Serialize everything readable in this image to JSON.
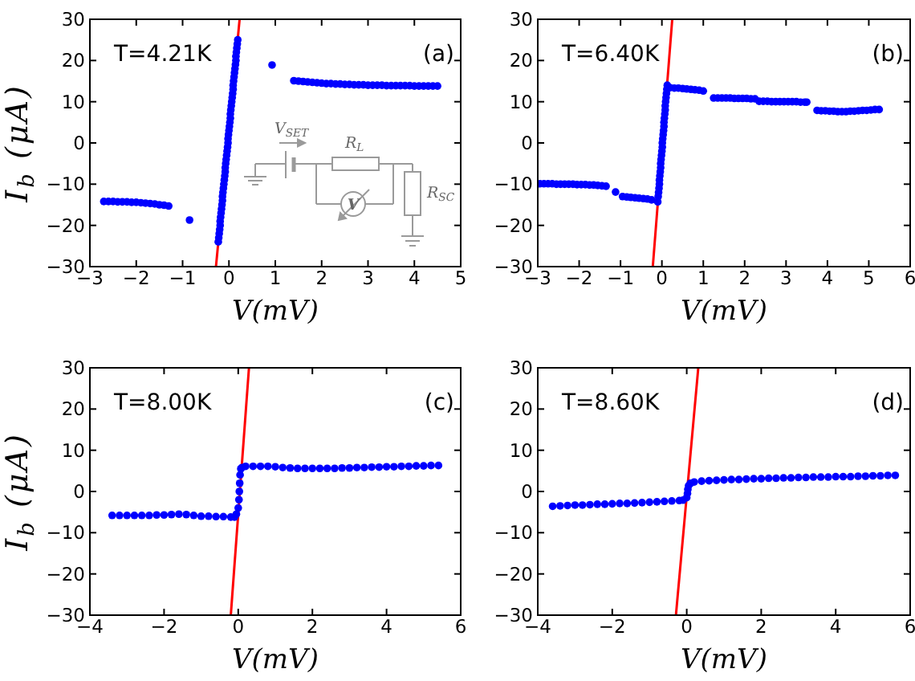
{
  "chart_data": [
    {
      "type": "scatter",
      "title": "(a)",
      "annotations": [
        "T=4.21K",
        "V$_{SET}$",
        "R$_{L}$",
        "R$_{SC}$",
        "V"
      ],
      "xlabel": "V(mV)",
      "ylabel": "I$_{b}$ (μA)",
      "xlim": [
        -3,
        5
      ],
      "xticks": [
        -3,
        -2,
        -1,
        0,
        1,
        2,
        3,
        4,
        5
      ],
      "ylim": [
        -30,
        30
      ],
      "yticks": [
        -30,
        -20,
        -10,
        0,
        10,
        20,
        30
      ],
      "series": [
        {
          "marker": "circle",
          "color": "#0000ff",
          "x": [
            -2.7,
            -2.6,
            -2.5,
            -2.4,
            -2.3,
            -2.2,
            -2.1,
            -2.0,
            -1.9,
            -1.8,
            -1.7,
            -1.6,
            -1.5,
            -1.4,
            -1.3,
            -0.85,
            -0.23,
            -0.22,
            -0.21,
            -0.2,
            -0.19,
            -0.19,
            -0.18,
            -0.17,
            -0.16,
            -0.15,
            -0.14,
            -0.14,
            -0.13,
            -0.12,
            -0.11,
            -0.1,
            -0.09,
            -0.08,
            -0.08,
            -0.07,
            -0.06,
            -0.05,
            -0.04,
            -0.03,
            -0.02,
            -0.02,
            -0.01,
            0.0,
            0.01,
            0.02,
            0.03,
            0.03,
            0.04,
            0.05,
            0.06,
            0.07,
            0.08,
            0.09,
            0.09,
            0.1,
            0.11,
            0.12,
            0.13,
            0.14,
            0.15,
            0.15,
            0.16,
            0.17,
            0.18,
            0.19,
            0.93,
            1.4,
            1.5,
            1.6,
            1.7,
            1.8,
            1.9,
            2.0,
            2.1,
            2.2,
            2.3,
            2.4,
            2.5,
            2.6,
            2.7,
            2.8,
            2.9,
            3.0,
            3.1,
            3.2,
            3.3,
            3.4,
            3.5,
            3.6,
            3.7,
            3.8,
            3.9,
            4.0,
            4.1,
            4.2,
            4.3,
            4.4,
            4.5
          ],
          "values": [
            -14.2,
            -14.2,
            -14.2,
            -14.3,
            -14.3,
            -14.3,
            -14.4,
            -14.4,
            -14.5,
            -14.6,
            -14.7,
            -14.8,
            -15.0,
            -15.1,
            -15.3,
            -18.7,
            -24,
            -23,
            -22,
            -21,
            -20,
            -19,
            -18,
            -17,
            -16,
            -15,
            -14,
            -13,
            -12,
            -11,
            -10,
            -9,
            -8,
            -7,
            -6,
            -5,
            -4,
            -3,
            -2,
            -1,
            0,
            1,
            2,
            3,
            4,
            5,
            6,
            7,
            8,
            9,
            10,
            11,
            12,
            13,
            14,
            15,
            16,
            17,
            18,
            19,
            20,
            21,
            22,
            23,
            24,
            25,
            18.9,
            15.1,
            15.0,
            14.9,
            14.8,
            14.7,
            14.6,
            14.5,
            14.4,
            14.4,
            14.3,
            14.3,
            14.2,
            14.2,
            14.1,
            14.1,
            14.1,
            14.0,
            14.0,
            14.0,
            14.0,
            13.9,
            13.9,
            13.9,
            13.9,
            13.9,
            13.9,
            13.8,
            13.8,
            13.8,
            13.8,
            13.8,
            13.8
          ]
        },
        {
          "type": "line",
          "color": "#ff0000",
          "x": [
            -0.28,
            0.23
          ],
          "values": [
            -30,
            30
          ]
        }
      ]
    },
    {
      "type": "scatter",
      "title": "(b)",
      "annotations": [
        "T=6.40K"
      ],
      "xlabel": "V(mV)",
      "xlim": [
        -3,
        6
      ],
      "xticks": [
        -3,
        -2,
        -1,
        0,
        1,
        2,
        3,
        4,
        5,
        6
      ],
      "ylim": [
        -30,
        30
      ],
      "yticks": [
        -30,
        -20,
        -10,
        0,
        10,
        20,
        30
      ],
      "series": [
        {
          "marker": "circle",
          "color": "#0000ff",
          "x": [
            -2.95,
            -2.85,
            -2.75,
            -2.65,
            -2.55,
            -2.45,
            -2.35,
            -2.25,
            -2.15,
            -2.05,
            -1.95,
            -1.85,
            -1.75,
            -1.65,
            -1.55,
            -1.45,
            -1.35,
            -1.12,
            -0.95,
            -0.85,
            -0.75,
            -0.65,
            -0.55,
            -0.45,
            -0.35,
            -0.25,
            -0.1,
            -0.09,
            -0.08,
            -0.07,
            -0.06,
            -0.06,
            -0.05,
            -0.04,
            -0.03,
            -0.03,
            -0.02,
            -0.01,
            0.0,
            0.01,
            0.01,
            0.02,
            0.03,
            0.04,
            0.05,
            0.05,
            0.06,
            0.07,
            0.08,
            0.08,
            0.09,
            0.1,
            0.11,
            0.12,
            0.13,
            0.2,
            0.3,
            0.4,
            0.5,
            0.6,
            0.7,
            0.8,
            0.9,
            1.0,
            1.25,
            1.35,
            1.45,
            1.55,
            1.65,
            1.75,
            1.85,
            1.95,
            2.05,
            2.15,
            2.25,
            2.35,
            2.45,
            2.55,
            2.65,
            2.75,
            2.85,
            2.95,
            3.05,
            3.15,
            3.25,
            3.35,
            3.45,
            3.5,
            3.75,
            3.85,
            3.95,
            4.05,
            4.15,
            4.25,
            4.35,
            4.45,
            4.55,
            4.65,
            4.75,
            4.85,
            4.95,
            5.05,
            5.15,
            5.25
          ],
          "values": [
            -9.9,
            -9.9,
            -9.9,
            -9.9,
            -10.0,
            -10.0,
            -10.0,
            -10.0,
            -10.0,
            -10.1,
            -10.1,
            -10.1,
            -10.2,
            -10.2,
            -10.3,
            -10.4,
            -10.5,
            -11.9,
            -13.0,
            -13.1,
            -13.2,
            -13.3,
            -13.4,
            -13.5,
            -13.6,
            -13.8,
            -14.3,
            -13,
            -12,
            -11,
            -10,
            -9,
            -8,
            -7,
            -6,
            -5,
            -4,
            -3,
            -2,
            -1,
            0,
            1,
            2,
            3,
            4,
            5,
            6,
            7,
            8,
            9,
            10,
            11,
            12,
            13,
            14,
            13.4,
            13.3,
            13.3,
            13.2,
            13.1,
            13.0,
            12.9,
            12.8,
            12.6,
            10.9,
            10.9,
            10.9,
            10.9,
            10.9,
            10.8,
            10.8,
            10.8,
            10.8,
            10.7,
            10.7,
            10.1,
            10.1,
            10.1,
            10.0,
            10.0,
            10.0,
            10.0,
            10.0,
            10.0,
            10.0,
            9.9,
            9.9,
            9.9,
            7.9,
            7.8,
            7.8,
            7.7,
            7.7,
            7.6,
            7.6,
            7.6,
            7.7,
            7.7,
            7.8,
            7.9,
            7.9,
            8.0,
            8.1,
            8.1
          ]
        },
        {
          "type": "line",
          "color": "#ff0000",
          "x": [
            -0.22,
            0.25
          ],
          "values": [
            -30,
            30
          ]
        }
      ]
    },
    {
      "type": "scatter",
      "title": "(c)",
      "annotations": [
        "T=8.00K"
      ],
      "xlabel": "V(mV)",
      "ylabel": "I$_{b}$ (μA)",
      "xlim": [
        -4,
        6
      ],
      "xticks": [
        -4,
        -2,
        0,
        2,
        4,
        6
      ],
      "ylim": [
        -30,
        30
      ],
      "yticks": [
        -30,
        -20,
        -10,
        0,
        10,
        20,
        30
      ],
      "series": [
        {
          "marker": "circle",
          "color": "#0000ff",
          "x": [
            -3.4,
            -3.2,
            -3.0,
            -2.8,
            -2.6,
            -2.4,
            -2.2,
            -2.0,
            -1.8,
            -1.6,
            -1.4,
            -1.2,
            -1.0,
            -0.8,
            -0.6,
            -0.4,
            -0.2,
            -0.1,
            -0.05,
            0.0,
            0.02,
            0.03,
            0.04,
            0.05,
            0.07,
            0.1,
            0.2,
            0.4,
            0.6,
            0.8,
            1.0,
            1.2,
            1.4,
            1.6,
            1.8,
            2.0,
            2.2,
            2.4,
            2.6,
            2.8,
            3.0,
            3.2,
            3.4,
            3.6,
            3.8,
            4.0,
            4.2,
            4.4,
            4.6,
            4.8,
            5.0,
            5.2,
            5.4
          ],
          "values": [
            -5.8,
            -5.8,
            -5.8,
            -5.8,
            -5.8,
            -5.8,
            -5.7,
            -5.7,
            -5.6,
            -5.5,
            -5.6,
            -5.8,
            -6.0,
            -6.0,
            -6.1,
            -6.1,
            -6.2,
            -6.2,
            -5.5,
            -4,
            -2,
            0,
            2,
            4,
            5.5,
            5.8,
            6.1,
            6.1,
            6.1,
            6.1,
            6.0,
            5.8,
            5.7,
            5.6,
            5.6,
            5.6,
            5.6,
            5.6,
            5.6,
            5.7,
            5.7,
            5.8,
            5.8,
            5.9,
            5.9,
            6.0,
            6.0,
            6.1,
            6.1,
            6.2,
            6.2,
            6.3,
            6.3
          ]
        },
        {
          "type": "line",
          "color": "#ff0000",
          "x": [
            -0.2,
            0.29
          ],
          "values": [
            -30,
            30
          ]
        }
      ]
    },
    {
      "type": "scatter",
      "title": "(d)",
      "annotations": [
        "T=8.60K"
      ],
      "xlabel": "V(mV)",
      "xlim": [
        -4,
        6
      ],
      "xticks": [
        -4,
        -2,
        0,
        2,
        4,
        6
      ],
      "ylim": [
        -30,
        30
      ],
      "yticks": [
        -30,
        -20,
        -10,
        0,
        10,
        20,
        30
      ],
      "series": [
        {
          "marker": "circle",
          "color": "#0000ff",
          "x": [
            -3.6,
            -3.4,
            -3.2,
            -3.0,
            -2.8,
            -2.6,
            -2.4,
            -2.2,
            -2.0,
            -1.8,
            -1.6,
            -1.4,
            -1.2,
            -1.0,
            -0.8,
            -0.6,
            -0.4,
            -0.2,
            -0.1,
            0.0,
            0.02,
            0.03,
            0.05,
            0.1,
            0.2,
            0.4,
            0.6,
            0.8,
            1.0,
            1.2,
            1.4,
            1.6,
            1.8,
            2.0,
            2.2,
            2.4,
            2.6,
            2.8,
            3.0,
            3.2,
            3.4,
            3.6,
            3.8,
            4.0,
            4.2,
            4.4,
            4.6,
            4.8,
            5.0,
            5.2,
            5.4,
            5.6
          ],
          "values": [
            -3.6,
            -3.5,
            -3.4,
            -3.3,
            -3.3,
            -3.2,
            -3.1,
            -3.1,
            -3.0,
            -2.9,
            -2.9,
            -2.8,
            -2.7,
            -2.6,
            -2.5,
            -2.4,
            -2.3,
            -2.2,
            -2.1,
            -1.5,
            -0.5,
            0.5,
            1.4,
            2.0,
            2.3,
            2.5,
            2.6,
            2.7,
            2.8,
            2.9,
            2.9,
            3.0,
            3.1,
            3.1,
            3.2,
            3.2,
            3.3,
            3.3,
            3.4,
            3.4,
            3.5,
            3.5,
            3.5,
            3.6,
            3.6,
            3.6,
            3.7,
            3.7,
            3.8,
            3.8,
            3.9,
            3.9
          ]
        },
        {
          "type": "line",
          "color": "#ff0000",
          "x": [
            -0.29,
            0.31
          ],
          "values": [
            -30,
            30
          ]
        }
      ]
    }
  ]
}
